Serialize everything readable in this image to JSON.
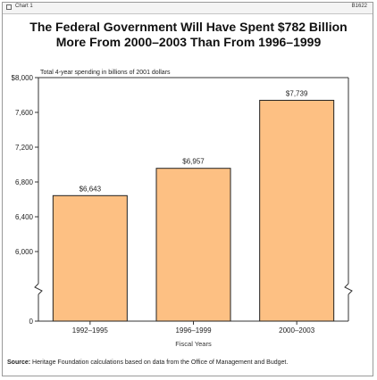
{
  "header": {
    "chart_label": "Chart 1",
    "chart_id": "B1622"
  },
  "title_lines": [
    "The Federal Government Will Have Spent $782 Billion",
    "More From 2000–2003 Than From 1996–1999"
  ],
  "source": {
    "label": "Source:",
    "text": "Heritage Foundation calculations based on data from the Office of Management and Budget."
  },
  "colors": {
    "bar_fill": "#fdc083",
    "bar_stroke": "#222222",
    "axis": "#333333"
  },
  "chart_data": {
    "type": "bar",
    "title": "The Federal Government Will Have Spent $782 Billion More From 2000–2003 Than From 1996–1999",
    "ylabel": "Total 4-year spending in billions of 2001 dollars",
    "xlabel": "Fiscal Years",
    "categories": [
      "1992–1995",
      "1996–1999",
      "2000–2003"
    ],
    "values": [
      6643,
      6957,
      7739
    ],
    "data_labels": [
      "$6,643",
      "$6,957",
      "$7,739"
    ],
    "ylim": [
      5600,
      8000
    ],
    "axis_break": true,
    "yticks": [
      0,
      6000,
      6400,
      6800,
      7200,
      7600,
      8000
    ],
    "ytick_labels": [
      "0",
      "6,000",
      "6,400",
      "6,800",
      "7,200",
      "7,600",
      "$8,000"
    ],
    "grid": false,
    "legend": "none"
  }
}
